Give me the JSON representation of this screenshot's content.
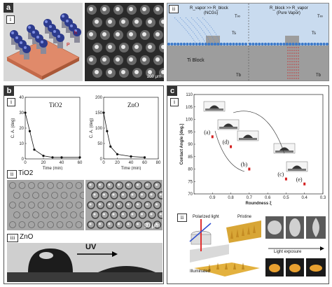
{
  "panel_a": {
    "tag": "a",
    "sub_i": "i",
    "sub_ii": "ii",
    "scale_bar": "200 μm",
    "label_h": "h",
    "label_p": "P",
    "cond_left": "R_vapor >> R_block",
    "cond_right": "R_block >> R_vapor",
    "ncgs": "(NCGs)",
    "pure_vapor": "(Pure Vapor)",
    "tinf_left": "T∞",
    "tinf_right": "T∞",
    "ts_left": "Ts",
    "ts_right": "Ts",
    "tb_left": "Tb",
    "tb_right": "Tb",
    "ti_block": "Ti Block"
  },
  "panel_b": {
    "tag": "b",
    "sub_i": "i",
    "sub_ii": "ii",
    "sub_iii": "iii",
    "chart_titles": [
      "TiO2",
      "ZnO"
    ],
    "ylabel": "C. A. (deg)",
    "xlabel": "Time (min)",
    "ii_label": "TiO2",
    "iii_label": "ZnO",
    "uv_label": "UV",
    "scale_bar": "50 μm"
  },
  "panel_c": {
    "tag": "c",
    "sub_i": "i",
    "sub_ii": "ii",
    "point_labels": [
      "(a)",
      "(d)",
      "(b)",
      "(c)",
      "(e)"
    ],
    "polarized": "Polarized light",
    "pristine": "Pristine",
    "illuminated": "Illuminated",
    "light_exposure": "Light exposure"
  },
  "chart_data": [
    {
      "type": "line",
      "title": "TiO2",
      "xlabel": "Time (min)",
      "ylabel": "C. A. (deg)",
      "x": [
        0,
        5,
        10,
        20,
        30,
        40,
        60
      ],
      "values": [
        30,
        18,
        6,
        2,
        1,
        1,
        1
      ],
      "xlim": [
        0,
        60
      ],
      "ylim": [
        0,
        40
      ],
      "xticks": [
        0,
        20,
        40,
        60
      ],
      "yticks": [
        0,
        10,
        20,
        30,
        40
      ]
    },
    {
      "type": "line",
      "title": "ZnO",
      "xlabel": "Time (min)",
      "ylabel": "C. A. (deg)",
      "x": [
        0,
        5,
        10,
        20,
        40,
        60
      ],
      "values": [
        150,
        90,
        40,
        15,
        8,
        5
      ],
      "xlim": [
        0,
        80
      ],
      "ylim": [
        0,
        200
      ],
      "xticks": [
        0,
        20,
        40,
        60,
        80
      ],
      "yticks": [
        0,
        50,
        100,
        150,
        200
      ]
    },
    {
      "type": "scatter",
      "xlabel": "Roundness ξ",
      "ylabel": "Contact Angle [deg.]",
      "x": [
        0.9,
        0.8,
        0.7,
        0.5,
        0.4
      ],
      "values": [
        93,
        89,
        80,
        76,
        74
      ],
      "point_labels": [
        "(a)",
        "(d)",
        "(b)",
        "(c)",
        "(e)"
      ],
      "xlim": [
        1.0,
        0.3
      ],
      "ylim": [
        70,
        110
      ],
      "xticks": [
        0.9,
        0.8,
        0.7,
        0.6,
        0.5,
        0.4,
        0.3
      ],
      "yticks": [
        70,
        75,
        80,
        85,
        90,
        95,
        100,
        105,
        110
      ]
    }
  ]
}
